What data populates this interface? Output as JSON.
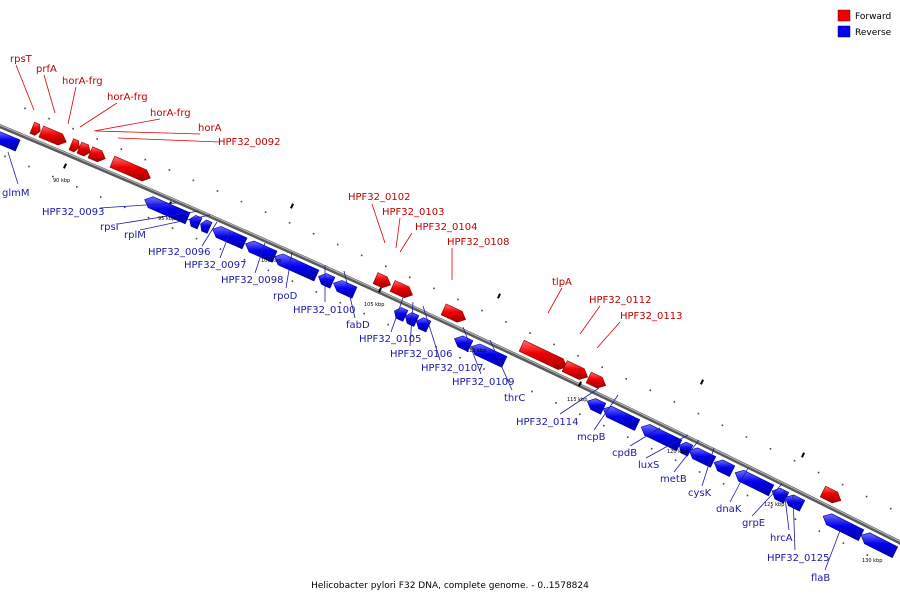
{
  "legend": {
    "forward": {
      "label": "Forward",
      "color": "#ee0000"
    },
    "reverse": {
      "label": "Reverse",
      "color": "#0000ee"
    }
  },
  "caption": "Helicobacter pylori F32 DNA, complete genome. - 0..1578824",
  "ticks": [
    "90 kbp",
    "95 kbp",
    "100 kbp",
    "105 kbp",
    "110 kbp",
    "115 kbp",
    "120 kbp",
    "125 kbp",
    "130 kbp"
  ],
  "forward_genes": [
    "rpsT",
    "prfA",
    "horA-frg",
    "horA-frg",
    "horA-frg",
    "horA",
    "HPF32_0092",
    "HPF32_0102",
    "HPF32_0103",
    "HPF32_0104",
    "HPF32_0108",
    "tlpA",
    "HPF32_0112",
    "HPF32_0113"
  ],
  "reverse_genes": [
    "glmM",
    "HPF32_0093",
    "rpsI",
    "rplM",
    "HPF32_0096",
    "HPF32_0097",
    "HPF32_0098",
    "rpoD",
    "HPF32_0100",
    "fabD",
    "HPF32_0105",
    "HPF32_0106",
    "HPF32_0107",
    "HPF32_0109",
    "thrC",
    "HPF32_0114",
    "mcpB",
    "cpdB",
    "luxS",
    "metB",
    "cysK",
    "dnaK",
    "grpE",
    "hrcA",
    "HPF32_0125",
    "flaB"
  ]
}
